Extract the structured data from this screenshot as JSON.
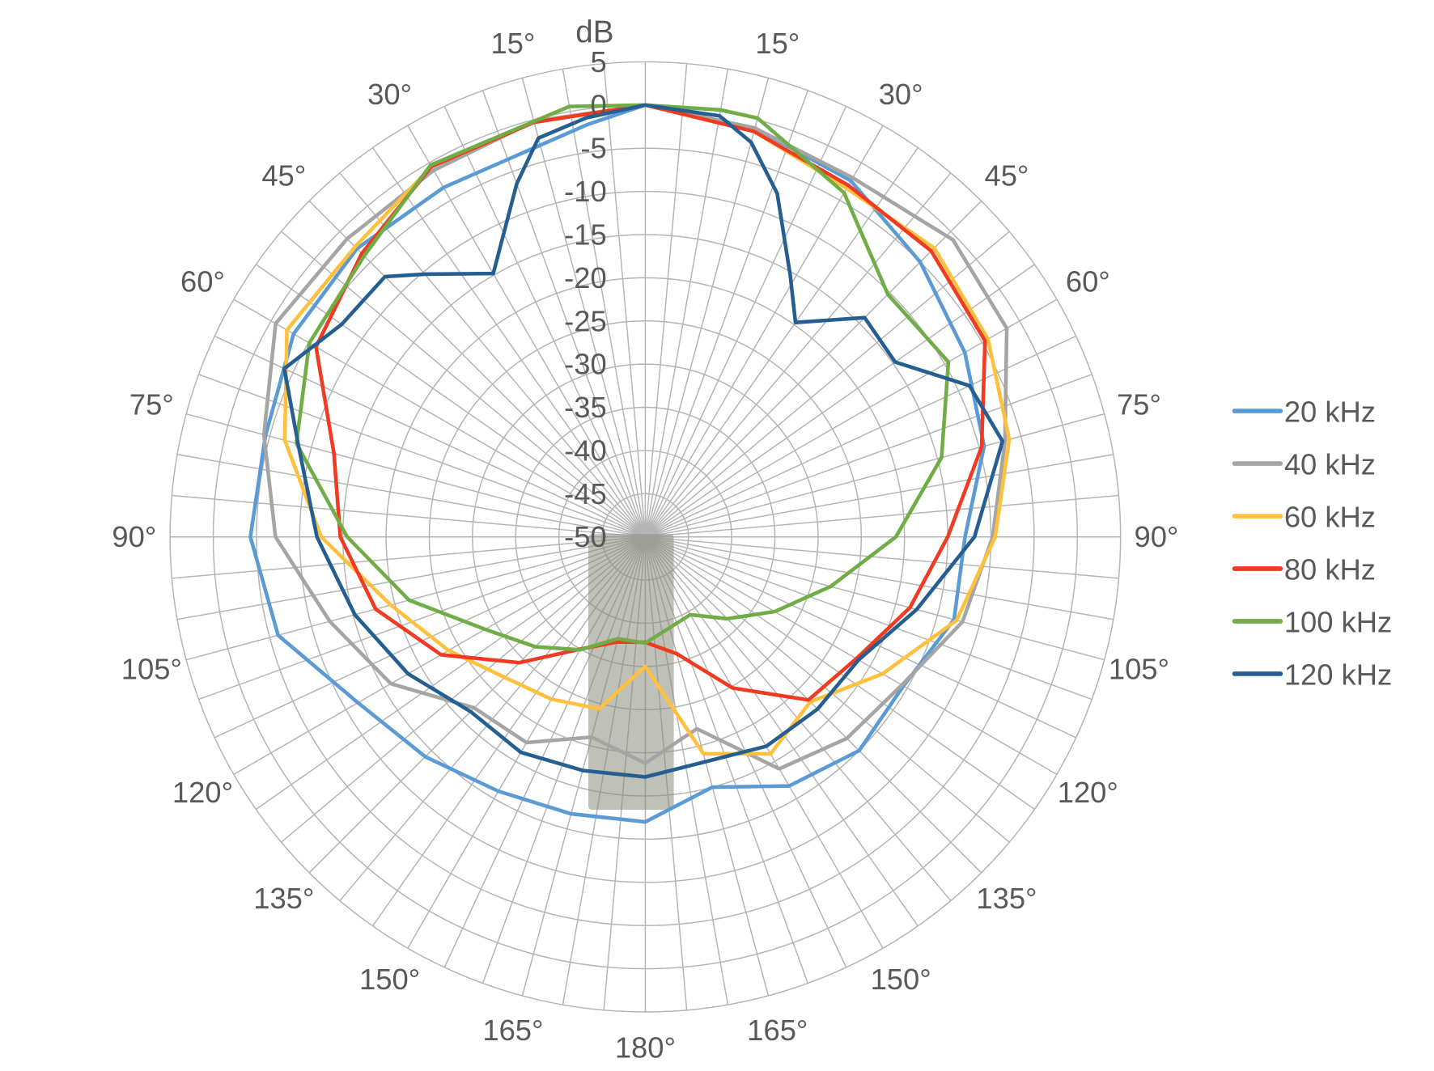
{
  "chart_data": {
    "type": "polar-line",
    "radial_axis_label": "dB",
    "rlim": [
      -50,
      5
    ],
    "radial_ticks": [
      "5",
      "0",
      "-5",
      "-10",
      "-15",
      "-20",
      "-25",
      "-30",
      "-35",
      "-40",
      "-45",
      "-50"
    ],
    "angle_direction": "clockwise from top, labels mirrored on left side",
    "angle_ticks": [
      {
        "angle": 15,
        "label": "15°"
      },
      {
        "angle": 30,
        "label": "30°"
      },
      {
        "angle": 45,
        "label": "45°"
      },
      {
        "angle": 60,
        "label": "60°"
      },
      {
        "angle": 75,
        "label": "75°"
      },
      {
        "angle": 90,
        "label": "90°"
      },
      {
        "angle": 105,
        "label": "105°"
      },
      {
        "angle": 120,
        "label": "120°"
      },
      {
        "angle": 135,
        "label": "135°"
      },
      {
        "angle": 150,
        "label": "150°"
      },
      {
        "angle": 165,
        "label": "165°"
      },
      {
        "angle": 180,
        "label": "180°"
      },
      {
        "angle": 195,
        "label": "165°"
      },
      {
        "angle": 210,
        "label": "150°"
      },
      {
        "angle": 225,
        "label": "135°"
      },
      {
        "angle": 240,
        "label": "120°"
      },
      {
        "angle": 255,
        "label": "105°"
      },
      {
        "angle": 270,
        "label": "90°"
      },
      {
        "angle": 285,
        "label": "75°"
      },
      {
        "angle": 300,
        "label": "60°"
      },
      {
        "angle": 315,
        "label": "45°"
      },
      {
        "angle": 330,
        "label": "30°"
      },
      {
        "angle": 345,
        "label": "15°"
      }
    ],
    "grid": true,
    "legend_position": "right",
    "series": [
      {
        "name": "20 kHz",
        "color": "#5B9BD5",
        "points": [
          [
            0,
            0
          ],
          [
            15,
            -1
          ],
          [
            30,
            -2.4
          ],
          [
            45,
            -5
          ],
          [
            60,
            -7.3
          ],
          [
            75,
            -9.4
          ],
          [
            90,
            -13
          ],
          [
            105,
            -13
          ],
          [
            120,
            -15.5
          ],
          [
            135,
            -15
          ],
          [
            150,
            -16.7
          ],
          [
            165,
            -20
          ],
          [
            180,
            -17
          ],
          [
            195,
            -16.8
          ],
          [
            210,
            -16
          ],
          [
            225,
            -14
          ],
          [
            240,
            -11.6
          ],
          [
            255,
            -6
          ],
          [
            270,
            -4.3
          ],
          [
            285,
            -4.5
          ],
          [
            300,
            -3
          ],
          [
            315,
            -2.8
          ],
          [
            330,
            -3.3
          ],
          [
            352,
            -1.8
          ]
        ]
      },
      {
        "name": "40 kHz",
        "color": "#A5A5A5",
        "points": [
          [
            0,
            0
          ],
          [
            15,
            -1
          ],
          [
            30,
            -2
          ],
          [
            46,
            -0.5
          ],
          [
            60,
            -1.7
          ],
          [
            75,
            -6.9
          ],
          [
            90,
            -9.8
          ],
          [
            105,
            -12
          ],
          [
            120,
            -15.7
          ],
          [
            135,
            -17
          ],
          [
            150,
            -19
          ],
          [
            165,
            -27
          ],
          [
            180,
            -23.8
          ],
          [
            195,
            -26
          ],
          [
            210,
            -22.5
          ],
          [
            225,
            -22
          ],
          [
            240,
            -16
          ],
          [
            255,
            -12.2
          ],
          [
            270,
            -7.2
          ],
          [
            285,
            -4.3
          ],
          [
            300,
            -0.6
          ],
          [
            315,
            -1.2
          ],
          [
            330,
            -1
          ],
          [
            345,
            -0.2
          ]
        ]
      },
      {
        "name": "60 kHz",
        "color": "#FFC03D",
        "points": [
          [
            0,
            0
          ],
          [
            15,
            -1.4
          ],
          [
            30,
            -3.4
          ],
          [
            45,
            -2.7
          ],
          [
            60,
            -4.2
          ],
          [
            75,
            -6.4
          ],
          [
            90,
            -9.5
          ],
          [
            105,
            -12.7
          ],
          [
            120,
            -18.3
          ],
          [
            135,
            -23
          ],
          [
            150,
            -21
          ],
          [
            165,
            -24
          ],
          [
            180,
            -35
          ],
          [
            195,
            -29.4
          ],
          [
            210,
            -28.3
          ],
          [
            225,
            -27
          ],
          [
            240,
            -23.7
          ],
          [
            255,
            -19.5
          ],
          [
            270,
            -12.5
          ],
          [
            285,
            -6.8
          ],
          [
            300,
            -2.1
          ],
          [
            315,
            -2.5
          ],
          [
            330,
            -0.5
          ],
          [
            345,
            -0.3
          ]
        ]
      },
      {
        "name": "80 kHz",
        "color": "#F03A22",
        "points": [
          [
            0,
            0
          ],
          [
            15,
            -1.4
          ],
          [
            30,
            -3
          ],
          [
            45,
            -3.2
          ],
          [
            60,
            -4.6
          ],
          [
            75,
            -9.7
          ],
          [
            90,
            -15
          ],
          [
            105,
            -18.3
          ],
          [
            120,
            -21.8
          ],
          [
            135,
            -23.3
          ],
          [
            150,
            -29.8
          ],
          [
            165,
            -36
          ],
          [
            180,
            -37.8
          ],
          [
            195,
            -37.4
          ],
          [
            210,
            -35
          ],
          [
            225,
            -29.4
          ],
          [
            240,
            -22.7
          ],
          [
            255,
            -17.7
          ],
          [
            270,
            -14.7
          ],
          [
            285,
            -12.7
          ],
          [
            300,
            -6
          ],
          [
            315,
            -3.6
          ],
          [
            330,
            -0.5
          ],
          [
            345,
            -0.3
          ]
        ]
      },
      {
        "name": "100 kHz",
        "color": "#70AD47",
        "points": [
          [
            0,
            0
          ],
          [
            10,
            0.2
          ],
          [
            15,
            0.2
          ],
          [
            30,
            -4
          ],
          [
            45,
            -10.3
          ],
          [
            60,
            -9.5
          ],
          [
            75,
            -14.5
          ],
          [
            90,
            -21
          ],
          [
            105,
            -27.8
          ],
          [
            120,
            -32.7
          ],
          [
            135,
            -36.6
          ],
          [
            150,
            -39.6
          ],
          [
            180,
            -37.7
          ],
          [
            195,
            -37.8
          ],
          [
            210,
            -34.9
          ],
          [
            225,
            -32
          ],
          [
            240,
            -28.6
          ],
          [
            255,
            -21.7
          ],
          [
            270,
            -15.5
          ],
          [
            285,
            -8.2
          ],
          [
            300,
            -5.1
          ],
          [
            315,
            -4
          ],
          [
            330,
            -0.3
          ],
          [
            350,
            0.6
          ]
        ]
      },
      {
        "name": "120 kHz",
        "color": "#255E91",
        "points": [
          [
            0,
            0
          ],
          [
            10,
            -0.5
          ],
          [
            15,
            -2.7
          ],
          [
            21,
            -7.4
          ],
          [
            29,
            -15.4
          ],
          [
            35,
            -19.7
          ],
          [
            45,
            -14.1
          ],
          [
            55,
            -14.7
          ],
          [
            65,
            -8.6
          ],
          [
            75,
            -7.2
          ],
          [
            90,
            -11.9
          ],
          [
            105,
            -17.5
          ],
          [
            120,
            -21.5
          ],
          [
            135,
            -21.8
          ],
          [
            150,
            -22
          ],
          [
            180,
            -22.2
          ],
          [
            195,
            -22
          ],
          [
            210,
            -21.2
          ],
          [
            225,
            -21.4
          ],
          [
            240,
            -18.3
          ],
          [
            255,
            -15.2
          ],
          [
            270,
            -12
          ],
          [
            285,
            -8.4
          ],
          [
            295,
            -3.9
          ],
          [
            305,
            -7.1
          ],
          [
            315,
            -7.4
          ],
          [
            320,
            -10.3
          ],
          [
            330,
            -14.8
          ],
          [
            340,
            -6.5
          ],
          [
            345,
            -2.2
          ],
          [
            352,
            -1
          ]
        ]
      }
    ]
  }
}
